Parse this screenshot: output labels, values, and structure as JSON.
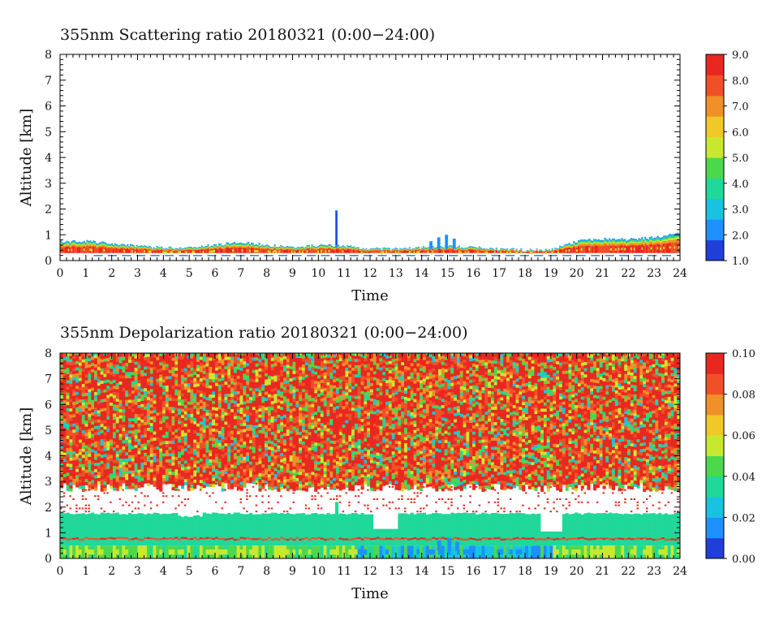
{
  "chart_data": [
    {
      "type": "heatmap",
      "title": "355nm Scattering ratio  20180321 (0:00−24:00)",
      "xlabel": "Time",
      "ylabel": "Altitude [km]",
      "xlim": [
        0,
        24
      ],
      "ylim": [
        0,
        8
      ],
      "x_ticks": [
        "0",
        "1",
        "2",
        "3",
        "4",
        "5",
        "6",
        "7",
        "8",
        "9",
        "10",
        "11",
        "12",
        "13",
        "14",
        "15",
        "16",
        "17",
        "18",
        "19",
        "20",
        "21",
        "22",
        "23",
        "24"
      ],
      "y_ticks": [
        "0",
        "1",
        "2",
        "3",
        "4",
        "5",
        "6",
        "7",
        "8"
      ],
      "colorbar": {
        "min": 1.0,
        "max": 9.0,
        "ticks": [
          "1.0",
          "2.0",
          "3.0",
          "4.0",
          "5.0",
          "6.0",
          "7.0",
          "8.0",
          "9.0"
        ]
      },
      "colormap": [
        "#1f3fd8",
        "#1e90ff",
        "#19c3e0",
        "#1fd89a",
        "#4cd84c",
        "#c8e830",
        "#f0c828",
        "#f09028",
        "#f05028",
        "#e82820"
      ],
      "features": {
        "aerosol_layer_top_km": [
          [
            0,
            0.72
          ],
          [
            1,
            0.75
          ],
          [
            2,
            0.65
          ],
          [
            3,
            0.55
          ],
          [
            4,
            0.5
          ],
          [
            5,
            0.5
          ],
          [
            6,
            0.6
          ],
          [
            7,
            0.72
          ],
          [
            8,
            0.6
          ],
          [
            9,
            0.5
          ],
          [
            10,
            0.6
          ],
          [
            11,
            0.55
          ],
          [
            12,
            0.45
          ],
          [
            13,
            0.45
          ],
          [
            14,
            0.5
          ],
          [
            15,
            0.55
          ],
          [
            16,
            0.5
          ],
          [
            17,
            0.45
          ],
          [
            18,
            0.4
          ],
          [
            19,
            0.42
          ],
          [
            20,
            0.75
          ],
          [
            21,
            0.85
          ],
          [
            22,
            0.82
          ],
          [
            23,
            0.9
          ],
          [
            24,
            1.05
          ]
        ],
        "aerosol_layer_bottom_km": 0.3,
        "spike": {
          "time": 10.7,
          "top_km": 1.95
        }
      }
    },
    {
      "type": "heatmap",
      "title": "355nm Depolarization ratio  20180321 (0:00−24:00)",
      "xlabel": "Time",
      "ylabel": "Altitude [km]",
      "xlim": [
        0,
        24
      ],
      "ylim": [
        0,
        8
      ],
      "x_ticks": [
        "0",
        "1",
        "2",
        "3",
        "4",
        "5",
        "6",
        "7",
        "8",
        "9",
        "10",
        "11",
        "12",
        "13",
        "14",
        "15",
        "16",
        "17",
        "18",
        "19",
        "20",
        "21",
        "22",
        "23",
        "24"
      ],
      "y_ticks": [
        "0",
        "1",
        "2",
        "3",
        "4",
        "5",
        "6",
        "7",
        "8"
      ],
      "colorbar": {
        "min": 0.0,
        "max": 0.1,
        "ticks": [
          "0.00",
          "0.02",
          "0.04",
          "0.06",
          "0.08",
          "0.10"
        ]
      },
      "colormap": [
        "#1f3fd8",
        "#1e90ff",
        "#19c3e0",
        "#1fd89a",
        "#4cd84c",
        "#c8e830",
        "#f0c828",
        "#f09028",
        "#f05028",
        "#e82820"
      ],
      "features": {
        "noise_region_bottom_km": 2.7,
        "clear_gap_km": [
          1.8,
          2.7
        ],
        "green_layer_km": [
          0.5,
          1.75
        ],
        "low_layer_km": [
          0.0,
          0.5
        ]
      }
    }
  ]
}
